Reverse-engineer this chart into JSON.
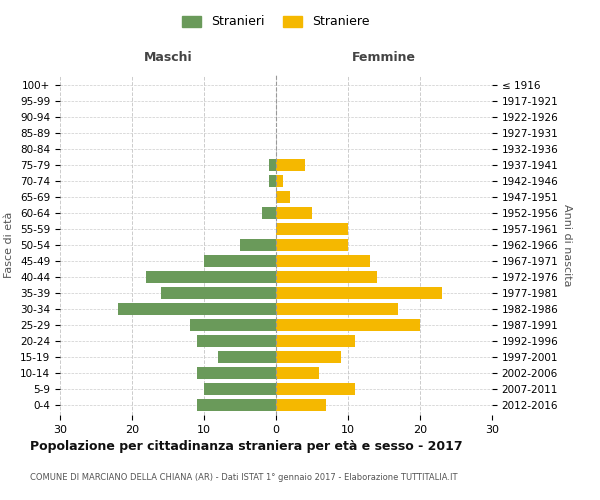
{
  "age_groups": [
    "0-4",
    "5-9",
    "10-14",
    "15-19",
    "20-24",
    "25-29",
    "30-34",
    "35-39",
    "40-44",
    "45-49",
    "50-54",
    "55-59",
    "60-64",
    "65-69",
    "70-74",
    "75-79",
    "80-84",
    "85-89",
    "90-94",
    "95-99",
    "100+"
  ],
  "birth_years": [
    "2012-2016",
    "2007-2011",
    "2002-2006",
    "1997-2001",
    "1992-1996",
    "1987-1991",
    "1982-1986",
    "1977-1981",
    "1972-1976",
    "1967-1971",
    "1962-1966",
    "1957-1961",
    "1952-1956",
    "1947-1951",
    "1942-1946",
    "1937-1941",
    "1932-1936",
    "1927-1931",
    "1922-1926",
    "1917-1921",
    "≤ 1916"
  ],
  "males": [
    11,
    10,
    11,
    8,
    11,
    12,
    22,
    16,
    18,
    10,
    5,
    0,
    2,
    0,
    1,
    1,
    0,
    0,
    0,
    0,
    0
  ],
  "females": [
    7,
    11,
    6,
    9,
    11,
    20,
    17,
    23,
    14,
    13,
    10,
    10,
    5,
    2,
    1,
    4,
    0,
    0,
    0,
    0,
    0
  ],
  "male_color": "#6a9a5a",
  "female_color": "#f5b800",
  "background_color": "#ffffff",
  "grid_color": "#cccccc",
  "title": "Popolazione per cittadinanza straniera per età e sesso - 2017",
  "subtitle": "COMUNE DI MARCIANO DELLA CHIANA (AR) - Dati ISTAT 1° gennaio 2017 - Elaborazione TUTTITALIA.IT",
  "legend_male": "Stranieri",
  "legend_female": "Straniere",
  "xlabel_left": "Maschi",
  "xlabel_right": "Femmine",
  "ylabel_left": "Fasce di età",
  "ylabel_right": "Anni di nascita",
  "xlim": 30
}
